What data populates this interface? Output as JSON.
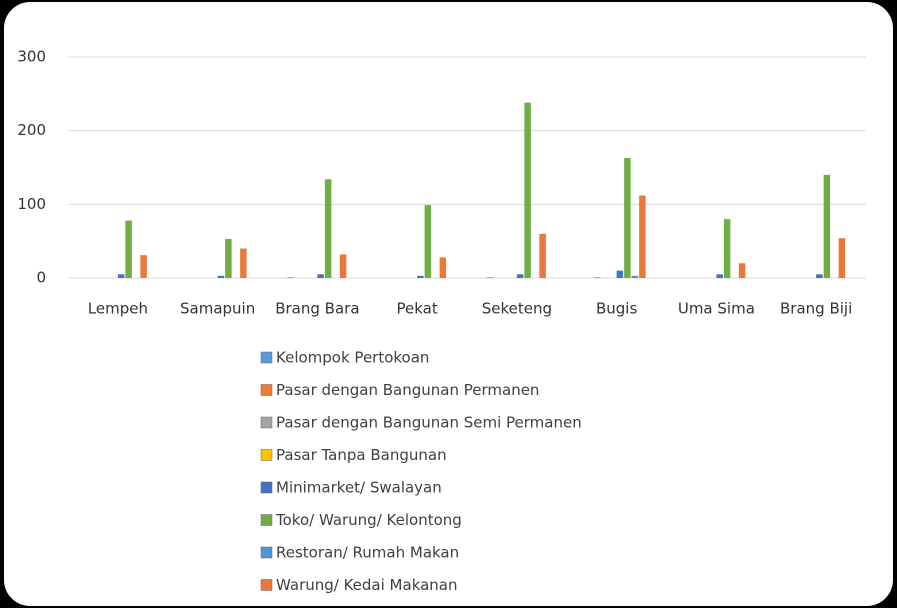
{
  "chart_data": {
    "type": "bar",
    "categories": [
      "Lempeh",
      "Samapuin",
      "Brang Bara",
      "Pekat",
      "Seketeng",
      "Bugis",
      "Uma Sima",
      "Brang Biji"
    ],
    "series": [
      {
        "name": "Kelompok Pertokoan",
        "color": "#5b9bd5",
        "values": [
          0,
          0,
          1,
          0,
          1,
          0,
          0,
          0
        ]
      },
      {
        "name": "Pasar dengan Bangunan Permanen",
        "color": "#ed7d31",
        "values": [
          0,
          0,
          0,
          0,
          0,
          1,
          0,
          0
        ]
      },
      {
        "name": "Pasar dengan Bangunan Semi Permanen",
        "color": "#a5a5a5",
        "values": [
          0,
          0,
          0,
          0,
          0,
          0,
          0,
          0
        ]
      },
      {
        "name": "Pasar Tanpa Bangunan",
        "color": "#ffc000",
        "values": [
          0,
          0,
          0,
          0,
          0,
          0,
          0,
          0
        ]
      },
      {
        "name": "Minimarket/ Swalayan",
        "color": "#4472c4",
        "values": [
          5,
          3,
          5,
          3,
          5,
          10,
          5,
          5
        ]
      },
      {
        "name": "Toko/ Warung/ Kelontong",
        "color": "#70ad47",
        "values": [
          78,
          53,
          134,
          99,
          238,
          163,
          80,
          140
        ]
      },
      {
        "name": "Restoran/ Rumah Makan",
        "color": "#4e95d9",
        "values": [
          0,
          0,
          0,
          0,
          0,
          3,
          0,
          0
        ]
      },
      {
        "name": "Warung/ Kedai Makanan",
        "color": "#e8793a",
        "values": [
          31,
          40,
          32,
          28,
          60,
          112,
          20,
          54
        ]
      }
    ],
    "ylim": [
      0,
      300
    ],
    "yticks": [
      0,
      100,
      200,
      300
    ],
    "grid": true
  }
}
